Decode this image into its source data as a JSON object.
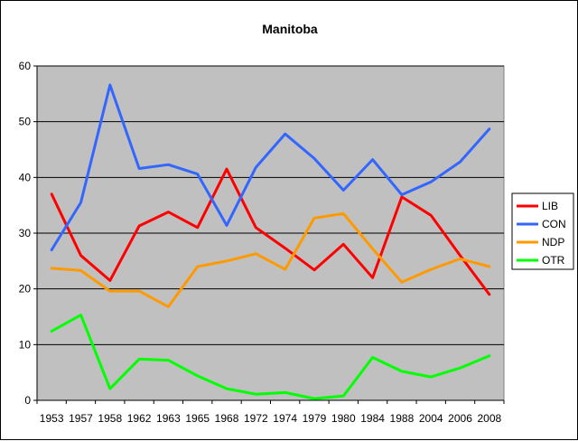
{
  "chart_data": {
    "type": "line",
    "title": "Manitoba",
    "xlabel": "",
    "ylabel": "",
    "ylim": [
      0,
      60
    ],
    "yticks": [
      0,
      10,
      20,
      30,
      40,
      50,
      60
    ],
    "grid": true,
    "legend_position": "right",
    "categories": [
      "1953",
      "1957",
      "1958",
      "1962",
      "1963",
      "1965",
      "1968",
      "1972",
      "1974",
      "1979",
      "1980",
      "1984",
      "1988",
      "2004",
      "2006",
      "2008"
    ],
    "series": [
      {
        "name": "LIB",
        "color": "#ff0000",
        "values": [
          37,
          26,
          21.5,
          31.3,
          33.8,
          31,
          41.5,
          31,
          27.3,
          23.4,
          28,
          22,
          36.5,
          33.2,
          26,
          19
        ]
      },
      {
        "name": "CON",
        "color": "#3366ff",
        "values": [
          27,
          35.5,
          56.6,
          41.6,
          42.3,
          40.6,
          31.4,
          41.8,
          47.8,
          43.4,
          37.7,
          43.2,
          36.9,
          39.2,
          42.8,
          48.7
        ]
      },
      {
        "name": "NDP",
        "color": "#ff9900",
        "values": [
          23.7,
          23.3,
          19.6,
          19.6,
          16.8,
          24,
          25,
          26.3,
          23.5,
          32.7,
          33.5,
          27.2,
          21.2,
          23.5,
          25.4,
          24
        ]
      },
      {
        "name": "OTR",
        "color": "#00ff00",
        "values": [
          12.4,
          15.3,
          2.1,
          7.4,
          7.2,
          4.4,
          2.1,
          1.1,
          1.4,
          0.3,
          0.8,
          7.7,
          5.2,
          4.2,
          5.8,
          8
        ]
      }
    ]
  }
}
